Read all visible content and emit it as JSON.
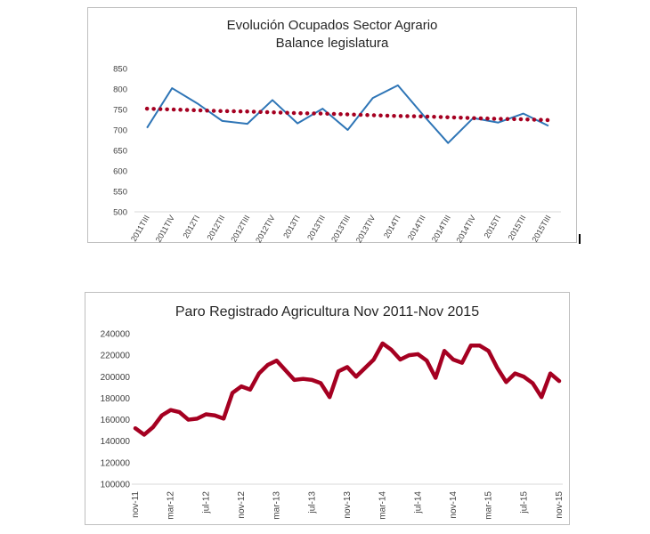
{
  "chart_data": [
    {
      "type": "line",
      "title": "Evolución Ocupados Sector Agrario",
      "subtitle": "Balance legislatura",
      "categories": [
        "2011TIII",
        "2011TIV",
        "2012TI",
        "2012TII",
        "2012TIII",
        "2012TIV",
        "2013TI",
        "2013TII",
        "2013TIII",
        "2013TIV",
        "2014TI",
        "2014TII",
        "2014TIII",
        "2014TIV",
        "2015TI",
        "2015TII",
        "2015TIII"
      ],
      "series": [
        {
          "values": [
            705,
            802,
            765,
            722,
            715,
            773,
            716,
            752,
            700,
            778,
            809,
            737,
            668,
            729,
            718,
            740,
            710
          ],
          "color": "#2e75b6",
          "style": "solid"
        },
        {
          "values": [
            752,
            750,
            748,
            746,
            745,
            743,
            741,
            740,
            738,
            736,
            734,
            733,
            731,
            729,
            727,
            726,
            724
          ],
          "color": "#a50021",
          "style": "dotted-trendline"
        }
      ],
      "yticks": [
        500,
        550,
        600,
        650,
        700,
        750,
        800,
        850
      ],
      "ylim": [
        500,
        850
      ],
      "grid": false,
      "xlabel": "",
      "ylabel": ""
    },
    {
      "type": "line",
      "title": "Paro Registrado Agricultura Nov 2011-Nov 2015",
      "x": [
        "nov-11",
        "dic-11",
        "ene-12",
        "feb-12",
        "mar-12",
        "abr-12",
        "may-12",
        "jun-12",
        "jul-12",
        "ago-12",
        "sep-12",
        "oct-12",
        "nov-12",
        "dic-12",
        "ene-13",
        "feb-13",
        "mar-13",
        "abr-13",
        "may-13",
        "jun-13",
        "jul-13",
        "ago-13",
        "sep-13",
        "oct-13",
        "nov-13",
        "dic-13",
        "ene-14",
        "feb-14",
        "mar-14",
        "abr-14",
        "may-14",
        "jun-14",
        "jul-14",
        "ago-14",
        "sep-14",
        "oct-14",
        "nov-14",
        "dic-14",
        "ene-15",
        "feb-15",
        "mar-15",
        "abr-15",
        "may-15",
        "jun-15",
        "jul-15",
        "ago-15",
        "sep-15",
        "oct-15",
        "nov-15"
      ],
      "xtick_labels": [
        "nov-11",
        "mar-12",
        "jul-12",
        "nov-12",
        "mar-13",
        "jul-13",
        "nov-13",
        "mar-14",
        "jul-14",
        "nov-14",
        "mar-15",
        "jul-15",
        "nov-15"
      ],
      "series": [
        {
          "values": [
            152000,
            146000,
            153000,
            164000,
            169000,
            167000,
            160000,
            161000,
            165000,
            164000,
            161000,
            185000,
            191000,
            188000,
            203000,
            211000,
            215000,
            206000,
            197000,
            198000,
            197000,
            194000,
            181000,
            205000,
            209000,
            200000,
            208000,
            216000,
            231000,
            225000,
            216000,
            220000,
            221000,
            215000,
            199000,
            224000,
            216000,
            213000,
            229000,
            229000,
            224000,
            208000,
            195000,
            203000,
            200000,
            194000,
            181000,
            203000,
            196000
          ],
          "color": "#a50021"
        }
      ],
      "yticks": [
        100000,
        120000,
        140000,
        160000,
        180000,
        200000,
        220000,
        240000
      ],
      "ylim": [
        100000,
        240000
      ],
      "grid": false,
      "xlabel": "",
      "ylabel": ""
    }
  ]
}
